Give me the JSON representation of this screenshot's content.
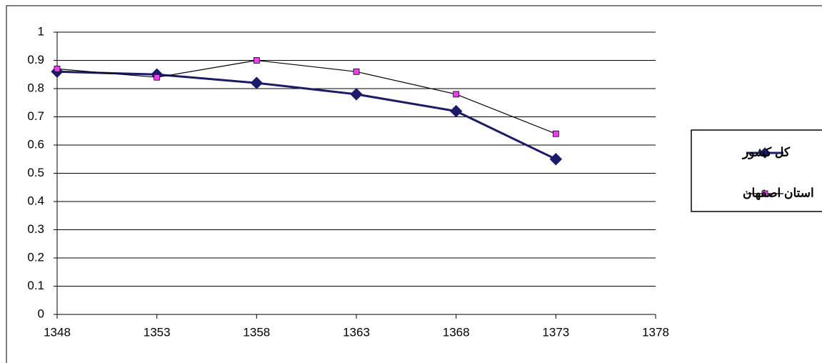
{
  "chart_data": {
    "type": "line",
    "x": [
      1348,
      1353,
      1358,
      1363,
      1368,
      1373
    ],
    "series": [
      {
        "name": "کل کشور",
        "color": "#1a1a6e",
        "marker": "diamond",
        "values": [
          0.86,
          0.85,
          0.82,
          0.78,
          0.72,
          0.55
        ]
      },
      {
        "name": "استان اصفهان",
        "color": "#ff33ff",
        "marker": "square",
        "values": [
          0.87,
          0.84,
          0.9,
          0.86,
          0.78,
          0.64
        ]
      }
    ],
    "xlim": [
      1348,
      1378
    ],
    "xticks": [
      1348,
      1353,
      1358,
      1363,
      1368,
      1373,
      1378
    ],
    "ylim": [
      0,
      1
    ],
    "yticks": [
      0,
      0.1,
      0.2,
      0.3,
      0.4,
      0.5,
      0.6,
      0.7,
      0.8,
      0.9,
      1
    ],
    "grid": true,
    "legend": "right"
  }
}
